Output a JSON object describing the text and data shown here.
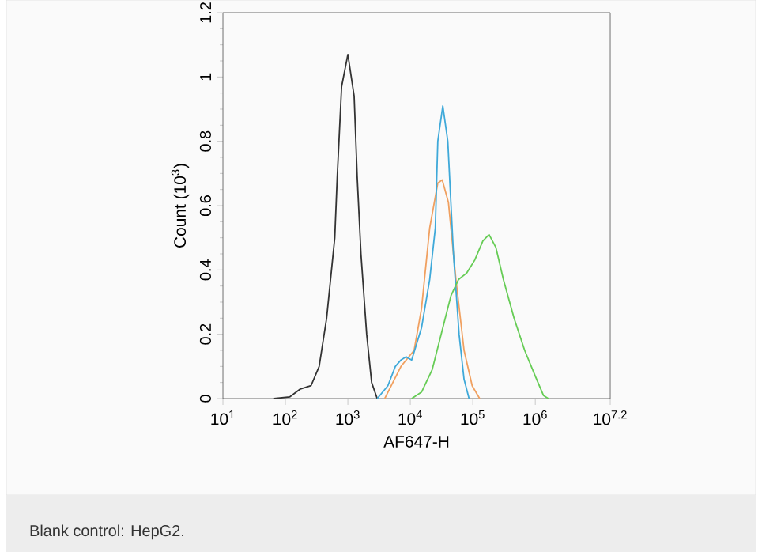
{
  "chart_data": {
    "type": "line",
    "xlabel": "AF647-H",
    "ylabel": "Count (10$^{3}$)",
    "log": "x",
    "xlim": [
      10,
      15848932
    ],
    "xticks": [
      {
        "value": 10,
        "label": "10$^{1}$"
      },
      {
        "value": 100,
        "label": "10$^{2}$"
      },
      {
        "value": 1000,
        "label": "10$^{3}$"
      },
      {
        "value": 10000,
        "label": "10$^{4}$"
      },
      {
        "value": 100000,
        "label": "10$^{5}$"
      },
      {
        "value": 1000000,
        "label": "10$^{6}$"
      },
      {
        "value": 15848932,
        "label": "10$^{7.2}$"
      }
    ],
    "ylim": [
      0,
      1.2
    ],
    "yticks": [
      0,
      0.2,
      0.4,
      0.6,
      0.8,
      1,
      1.2
    ],
    "series": [
      {
        "color": "#333333",
        "x": [
          66,
          117,
          174,
          257,
          347,
          457,
          617,
          676,
          794,
          1000,
          1260,
          1410,
          1620,
          2000,
          2400,
          2950
        ],
        "values": [
          0,
          0.005,
          0.03,
          0.04,
          0.1,
          0.25,
          0.5,
          0.69,
          0.97,
          1.07,
          0.94,
          0.69,
          0.45,
          0.2,
          0.05,
          0
        ]
      },
      {
        "color": "#f0a060",
        "x": [
          3890,
          5250,
          7080,
          11500,
          15100,
          20400,
          27500,
          32400,
          40700,
          53700,
          72400,
          97700,
          128800
        ],
        "values": [
          0,
          0.05,
          0.1,
          0.15,
          0.28,
          0.53,
          0.67,
          0.68,
          0.61,
          0.37,
          0.15,
          0.04,
          0
        ]
      },
      {
        "color": "#3fa9d9",
        "x": [
          2950,
          4370,
          5750,
          7080,
          8510,
          10500,
          15100,
          20400,
          25100,
          27500,
          33100,
          39800,
          49000,
          60300,
          72400,
          87100
        ],
        "values": [
          0,
          0.04,
          0.1,
          0.12,
          0.13,
          0.12,
          0.22,
          0.37,
          0.53,
          0.8,
          0.91,
          0.8,
          0.45,
          0.2,
          0.06,
          0
        ]
      },
      {
        "color": "#66cc55",
        "x": [
          10500,
          15100,
          22400,
          33100,
          44700,
          58900,
          79400,
          107000,
          145000,
          182000,
          234000,
          309000,
          457000,
          676000,
          1000000,
          1350000,
          1620000
        ],
        "values": [
          0,
          0.02,
          0.09,
          0.22,
          0.32,
          0.37,
          0.39,
          0.43,
          0.49,
          0.51,
          0.47,
          0.37,
          0.25,
          0.15,
          0.07,
          0.01,
          0
        ]
      }
    ],
    "annotations": [
      "Blank control: HepG2."
    ]
  }
}
